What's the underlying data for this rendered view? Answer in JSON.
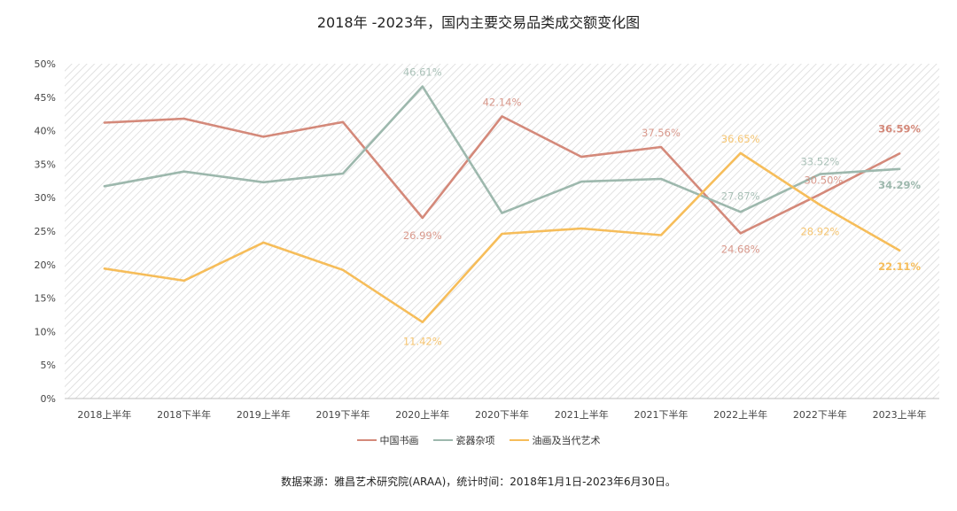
{
  "chart_data": {
    "type": "line",
    "title": "2018年 -2023年，国内主要交易品类成交额变化图",
    "categories": [
      "2018上半年",
      "2018下半年",
      "2019上半年",
      "2019下半年",
      "2020上半年",
      "2020下半年",
      "2021上半年",
      "2021下半年",
      "2022上半年",
      "2022下半年",
      "2023上半年"
    ],
    "y_ticks": [
      "0%",
      "5%",
      "10%",
      "15%",
      "20%",
      "25%",
      "30%",
      "35%",
      "40%",
      "45%",
      "50%"
    ],
    "ylim": [
      0,
      50
    ],
    "y_unit": "%",
    "grid": false,
    "background": "diagonal-hatch",
    "legend_position": "bottom",
    "series": [
      {
        "name": "中国书画",
        "color": "#d4897a",
        "values": [
          41.2,
          41.8,
          39.1,
          41.3,
          26.99,
          42.14,
          36.1,
          37.56,
          24.68,
          30.5,
          36.59
        ]
      },
      {
        "name": "瓷器杂项",
        "color": "#9db8ad",
        "values": [
          31.7,
          33.9,
          32.3,
          33.6,
          46.61,
          27.7,
          32.4,
          32.8,
          27.87,
          33.52,
          34.29
        ]
      },
      {
        "name": "油画及当代艺术",
        "color": "#f6bd5a",
        "values": [
          19.4,
          17.6,
          23.3,
          19.2,
          11.42,
          24.6,
          25.4,
          24.4,
          36.65,
          28.92,
          22.11
        ]
      }
    ],
    "annotations": [
      {
        "series": 0,
        "index": 4,
        "text": "26.99%",
        "bold": false
      },
      {
        "series": 0,
        "index": 5,
        "text": "42.14%",
        "bold": false
      },
      {
        "series": 0,
        "index": 7,
        "text": "37.56%",
        "bold": false
      },
      {
        "series": 0,
        "index": 8,
        "text": "24.68%",
        "bold": false
      },
      {
        "series": 0,
        "index": 9,
        "text": "30.50%",
        "bold": false
      },
      {
        "series": 0,
        "index": 10,
        "text": "36.59%",
        "bold": true
      },
      {
        "series": 1,
        "index": 4,
        "text": "46.61%",
        "bold": false
      },
      {
        "series": 1,
        "index": 8,
        "text": "27.87%",
        "bold": false
      },
      {
        "series": 1,
        "index": 9,
        "text": "33.52%",
        "bold": false
      },
      {
        "series": 1,
        "index": 10,
        "text": "34.29%",
        "bold": true
      },
      {
        "series": 2,
        "index": 4,
        "text": "11.42%",
        "bold": false
      },
      {
        "series": 2,
        "index": 8,
        "text": "36.65%",
        "bold": false
      },
      {
        "series": 2,
        "index": 9,
        "text": "28.92%",
        "bold": false
      },
      {
        "series": 2,
        "index": 10,
        "text": "22.11%",
        "bold": true
      }
    ]
  },
  "source_note": "数据来源：雅昌艺术研究院(ARAA)，统计时间：2018年1月1日-2023年6月30日。"
}
